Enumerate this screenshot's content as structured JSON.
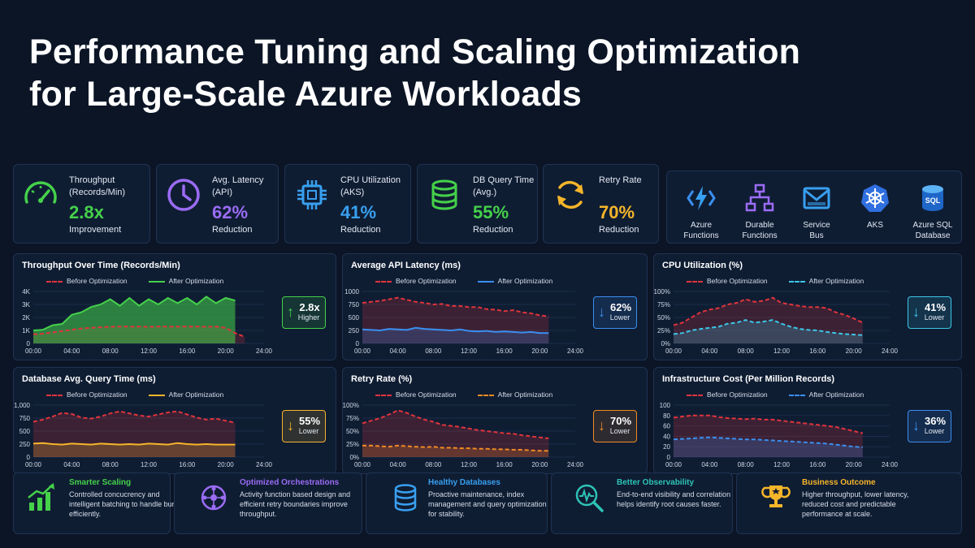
{
  "title": {
    "line1": "Performance Tuning and Scaling Optimization",
    "line2": "for Large-Scale Azure Workloads"
  },
  "kpis": [
    {
      "label1": "Throughput",
      "label2": "(Records/Min)",
      "value": "2.8x",
      "caption": "Improvement",
      "color": "#45d14a",
      "icon": "speedometer-icon"
    },
    {
      "label1": "Avg. Latency",
      "label2": "(API)",
      "value": "62%",
      "caption": "Reduction",
      "color": "#9b6cf5",
      "icon": "clock-icon"
    },
    {
      "label1": "CPU Utilization",
      "label2": "(AKS)",
      "value": "41%",
      "caption": "Reduction",
      "color": "#38a0f0",
      "icon": "cpu-chip-icon"
    },
    {
      "label1": "DB Query Time",
      "label2": "(Avg.)",
      "value": "55%",
      "caption": "Reduction",
      "color": "#45d14a",
      "icon": "database-icon"
    },
    {
      "label1": "Retry Rate",
      "label2": "",
      "value": "70%",
      "caption": "Reduction",
      "color": "#f5b52a",
      "icon": "refresh-icon"
    }
  ],
  "services": [
    {
      "line1": "Azure",
      "line2": "Functions",
      "icon": "azure-functions-icon"
    },
    {
      "line1": "Durable",
      "line2": "Functions",
      "icon": "durable-functions-icon"
    },
    {
      "line1": "Service",
      "line2": "Bus",
      "icon": "service-bus-icon"
    },
    {
      "line1": "AKS",
      "line2": "",
      "icon": "aks-icon"
    },
    {
      "line1": "Azure SQL",
      "line2": "Database",
      "icon": "sql-database-icon"
    }
  ],
  "legend": {
    "before": "Before Optimization",
    "after": "After Optimization"
  },
  "x_ticks": [
    "00:00",
    "04:00",
    "08:00",
    "12:00",
    "16:00",
    "20:00",
    "24:00"
  ],
  "colors": {
    "before": "#e0343c",
    "background": "#0b1526",
    "panel": "#0f1d33"
  },
  "chart_data": [
    {
      "type": "area",
      "title": "Throughput Over Time (Records/Min)",
      "y_ticks": [
        "0",
        "1K",
        "2K",
        "3K",
        "4K"
      ],
      "ylim": [
        0,
        4000
      ],
      "x": [
        0,
        1,
        2,
        3,
        4,
        5,
        6,
        7,
        8,
        9,
        10,
        11,
        12,
        13,
        14,
        15,
        16,
        17,
        18,
        19,
        20,
        21,
        22
      ],
      "series": [
        {
          "name": "Before Optimization",
          "color": "#e0343c",
          "style": "dashed",
          "values": [
            700,
            750,
            850,
            950,
            1050,
            1150,
            1200,
            1250,
            1280,
            1300,
            1300,
            1300,
            1280,
            1300,
            1300,
            1300,
            1300,
            1300,
            1280,
            1300,
            1200,
            800,
            500
          ]
        },
        {
          "name": "After Optimization",
          "color": "#45d14a",
          "style": "solid",
          "values": [
            1000,
            1050,
            1400,
            1500,
            2200,
            2400,
            2800,
            3000,
            3400,
            2900,
            3500,
            2900,
            3400,
            3000,
            3500,
            3100,
            3500,
            3000,
            3600,
            3100,
            3500,
            3300,
            null
          ]
        }
      ],
      "badge": {
        "value": "2.8x",
        "caption": "Higher",
        "direction": "up",
        "color": "#45d14a"
      }
    },
    {
      "type": "area",
      "title": "Average API Latency (ms)",
      "y_ticks": [
        "0",
        "250",
        "500",
        "750",
        "1000"
      ],
      "ylim": [
        0,
        1000
      ],
      "x": [
        0,
        1,
        2,
        3,
        4,
        5,
        6,
        7,
        8,
        9,
        10,
        11,
        12,
        13,
        14,
        15,
        16,
        17,
        18,
        19,
        20,
        21
      ],
      "series": [
        {
          "name": "Before Optimization",
          "color": "#e0343c",
          "style": "dashed",
          "values": [
            780,
            800,
            820,
            850,
            880,
            840,
            800,
            780,
            750,
            760,
            720,
            720,
            700,
            700,
            660,
            650,
            620,
            640,
            600,
            580,
            540,
            520
          ]
        },
        {
          "name": "After Optimization",
          "color": "#3b8ff0",
          "style": "solid",
          "values": [
            270,
            260,
            250,
            280,
            270,
            260,
            300,
            280,
            270,
            260,
            250,
            270,
            240,
            230,
            240,
            220,
            230,
            220,
            210,
            220,
            200,
            200
          ]
        }
      ],
      "badge": {
        "value": "62%",
        "caption": "Lower",
        "direction": "down",
        "color": "#3b8ff0"
      }
    },
    {
      "type": "area",
      "title": "CPU Utilization (%)",
      "y_ticks": [
        "0%",
        "25%",
        "50%",
        "75%",
        "100%"
      ],
      "ylim": [
        0,
        100
      ],
      "x": [
        0,
        1,
        2,
        3,
        4,
        5,
        6,
        7,
        8,
        9,
        10,
        11,
        12,
        13,
        14,
        15,
        16,
        17,
        18,
        19,
        20,
        21
      ],
      "series": [
        {
          "name": "Before Optimization",
          "color": "#e0343c",
          "style": "dashed",
          "values": [
            35,
            40,
            50,
            60,
            65,
            68,
            75,
            78,
            85,
            80,
            82,
            88,
            78,
            75,
            72,
            70,
            70,
            68,
            60,
            55,
            48,
            40
          ]
        },
        {
          "name": "After Optimization",
          "color": "#3cc7e8",
          "style": "dashed",
          "values": [
            18,
            20,
            25,
            28,
            30,
            32,
            38,
            40,
            45,
            40,
            42,
            45,
            38,
            32,
            28,
            26,
            25,
            22,
            20,
            18,
            17,
            16
          ]
        }
      ],
      "badge": {
        "value": "41%",
        "caption": "Lower",
        "direction": "down",
        "color": "#3cc7e8"
      }
    },
    {
      "type": "area",
      "title": "Database Avg. Query Time (ms)",
      "y_ticks": [
        "0",
        "250",
        "500",
        "750",
        "1,000"
      ],
      "ylim": [
        0,
        1000
      ],
      "x": [
        0,
        1,
        2,
        3,
        4,
        5,
        6,
        7,
        8,
        9,
        10,
        11,
        12,
        13,
        14,
        15,
        16,
        17,
        18,
        19,
        20,
        21
      ],
      "series": [
        {
          "name": "Before Optimization",
          "color": "#e0343c",
          "style": "dashed",
          "values": [
            680,
            720,
            780,
            850,
            830,
            760,
            740,
            780,
            840,
            880,
            840,
            800,
            780,
            820,
            860,
            880,
            820,
            760,
            720,
            740,
            700,
            660
          ]
        },
        {
          "name": "After Optimization",
          "color": "#f5b52a",
          "style": "solid",
          "values": [
            260,
            270,
            250,
            240,
            260,
            250,
            240,
            260,
            250,
            240,
            250,
            240,
            260,
            250,
            240,
            270,
            250,
            240,
            250,
            240,
            240,
            240
          ]
        }
      ],
      "badge": {
        "value": "55%",
        "caption": "Lower",
        "direction": "down",
        "color": "#f5b52a"
      }
    },
    {
      "type": "area",
      "title": "Retry Rate (%)",
      "y_ticks": [
        "0%",
        "25%",
        "50%",
        "75%",
        "100%"
      ],
      "ylim": [
        0,
        100
      ],
      "x": [
        0,
        1,
        2,
        3,
        4,
        5,
        6,
        7,
        8,
        9,
        10,
        11,
        12,
        13,
        14,
        15,
        16,
        17,
        18,
        19,
        20,
        21
      ],
      "series": [
        {
          "name": "Before Optimization",
          "color": "#e0343c",
          "style": "dashed",
          "values": [
            65,
            70,
            75,
            82,
            90,
            85,
            78,
            72,
            68,
            62,
            60,
            58,
            55,
            52,
            50,
            48,
            46,
            45,
            42,
            40,
            38,
            36
          ]
        },
        {
          "name": "After Optimization",
          "color": "#f08a24",
          "style": "dashed",
          "values": [
            22,
            22,
            21,
            20,
            22,
            21,
            20,
            19,
            20,
            18,
            18,
            17,
            17,
            16,
            16,
            15,
            15,
            14,
            14,
            13,
            12,
            12
          ]
        }
      ],
      "badge": {
        "value": "70%",
        "caption": "Lower",
        "direction": "down",
        "color": "#f08a24"
      }
    },
    {
      "type": "area",
      "title": "Infrastructure Cost (Per Million Records)",
      "y_ticks": [
        "0",
        "20",
        "40",
        "60",
        "80",
        "100"
      ],
      "ylim": [
        0,
        100
      ],
      "x": [
        0,
        1,
        2,
        3,
        4,
        5,
        6,
        7,
        8,
        9,
        10,
        11,
        12,
        13,
        14,
        15,
        16,
        17,
        18,
        19,
        20,
        21
      ],
      "series": [
        {
          "name": "Before Optimization",
          "color": "#e0343c",
          "style": "dashed",
          "values": [
            76,
            78,
            80,
            80,
            80,
            77,
            75,
            74,
            73,
            74,
            72,
            72,
            70,
            68,
            66,
            64,
            62,
            60,
            58,
            54,
            50,
            46
          ]
        },
        {
          "name": "After Optimization",
          "color": "#3b8ff0",
          "style": "dashed",
          "values": [
            34,
            35,
            36,
            37,
            38,
            37,
            36,
            35,
            34,
            34,
            33,
            32,
            31,
            30,
            29,
            28,
            27,
            26,
            24,
            22,
            20,
            19
          ]
        }
      ],
      "badge": {
        "value": "36%",
        "caption": "Lower",
        "direction": "down",
        "color": "#3b8ff0"
      }
    }
  ],
  "outcomes": [
    {
      "title": "Smarter Scaling",
      "color": "#45d14a",
      "icon": "bar-growth-icon",
      "desc": "Controlled concucrency and intelligent batching to handle burst efficiently."
    },
    {
      "title": "Optimized Orchestrations",
      "color": "#9b6cf5",
      "icon": "orchestration-icon",
      "desc": "Activity function based design and efficient retry boundaries improve throughput."
    },
    {
      "title": "Healthy Databases",
      "color": "#38a0f0",
      "icon": "database-icon",
      "desc": "Proactive maintenance, index management and query optimization for stability."
    },
    {
      "title": "Better Observability",
      "color": "#2ec4b6",
      "icon": "monitor-search-icon",
      "desc": "End-to-end visibility and correlation helps identify root causes faster."
    },
    {
      "title": "Business Outcome",
      "color": "#f5b52a",
      "icon": "trophy-icon",
      "desc": "Higher throughput, lower latency, reduced cost and predictable performance at scale."
    }
  ]
}
